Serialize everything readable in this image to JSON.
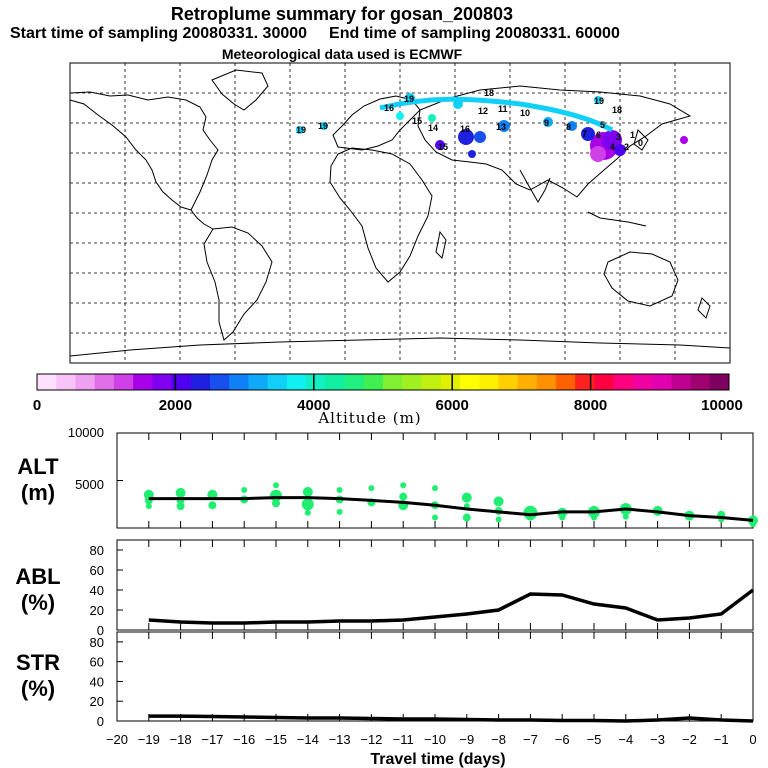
{
  "header": {
    "title": "Retroplume summary for gosan_200803",
    "start_label": "Start time of sampling 20080331. 30000",
    "end_label": "End time of sampling 20080331. 60000",
    "met_label": "Meteorological data used is ECMWF"
  },
  "map": {
    "plume_labels": [
      "19",
      "19",
      "19",
      "18",
      "16",
      "15",
      "14",
      "13",
      "12",
      "11",
      "10",
      "9",
      "8",
      "7",
      "6",
      "5",
      "4",
      "3",
      "2",
      "1",
      "0",
      "19",
      "18",
      "16",
      "15"
    ]
  },
  "colorbar": {
    "ticks": [
      0,
      2000,
      4000,
      6000,
      8000,
      10000
    ],
    "tick_labels": [
      "0",
      "2000",
      "4000",
      "6000",
      "8000",
      "10000"
    ],
    "label": "Altitude (m)",
    "colors": [
      "#fde0fd",
      "#f8c4f8",
      "#f0a0f0",
      "#e070e8",
      "#d040e8",
      "#a800e8",
      "#8000f0",
      "#5000f0",
      "#2020e0",
      "#1850f0",
      "#1080f8",
      "#10a8f8",
      "#10d0f8",
      "#10f0f0",
      "#10f0c0",
      "#10f0a0",
      "#20f080",
      "#40f050",
      "#80f030",
      "#a0f020",
      "#c0f010",
      "#e0f000",
      "#ffff00",
      "#fff000",
      "#ffd000",
      "#ffb000",
      "#ff9000",
      "#ff6000",
      "#ff2020",
      "#ff0040",
      "#ff0080",
      "#f000a0",
      "#e000b0",
      "#c00090",
      "#a00070",
      "#800060"
    ]
  },
  "chart_data": [
    {
      "type": "scatter",
      "name": "altitude",
      "ylabel": "ALT (m)",
      "ylabel_top": "ALT",
      "ylabel_bottom": "(m)",
      "ylim": [
        0,
        10000
      ],
      "yticks": [
        5000,
        10000
      ],
      "ytick_labels": [
        "5000",
        "10000"
      ],
      "xlim": [
        -20,
        0
      ],
      "line_x": [
        -19,
        -18,
        -17,
        -16,
        -15,
        -14,
        -13,
        -12,
        -11,
        -10,
        -9,
        -8,
        -7,
        -6,
        -5,
        -4,
        -3,
        -2,
        -1,
        0
      ],
      "line_y": [
        3100,
        3100,
        3100,
        3100,
        3200,
        3200,
        3100,
        2900,
        2700,
        2400,
        2000,
        1700,
        1400,
        1700,
        1700,
        2000,
        1700,
        1300,
        1100,
        800
      ],
      "points": [
        [
          -19,
          3500,
          5
        ],
        [
          -19,
          2900,
          4
        ],
        [
          -19,
          2300,
          3
        ],
        [
          -18,
          3700,
          5
        ],
        [
          -18,
          2900,
          4
        ],
        [
          -18,
          2300,
          4
        ],
        [
          -17,
          3500,
          5
        ],
        [
          -17,
          2400,
          4
        ],
        [
          -16,
          4000,
          3
        ],
        [
          -16,
          3000,
          4
        ],
        [
          -15,
          4500,
          3
        ],
        [
          -15,
          3400,
          6
        ],
        [
          -15,
          2600,
          4
        ],
        [
          -14,
          3800,
          5
        ],
        [
          -14,
          2500,
          6
        ],
        [
          -14,
          1600,
          3
        ],
        [
          -13,
          4000,
          3
        ],
        [
          -13,
          3000,
          4
        ],
        [
          -13,
          1700,
          3
        ],
        [
          -12,
          4200,
          3
        ],
        [
          -12,
          2700,
          4
        ],
        [
          -11,
          4500,
          3
        ],
        [
          -11,
          3300,
          4
        ],
        [
          -11,
          2400,
          5
        ],
        [
          -10,
          4200,
          3
        ],
        [
          -10,
          2400,
          4
        ],
        [
          -10,
          1100,
          3
        ],
        [
          -9,
          3200,
          5
        ],
        [
          -9,
          2300,
          3
        ],
        [
          -9,
          1100,
          4
        ],
        [
          -8,
          2800,
          5
        ],
        [
          -8,
          1800,
          4
        ],
        [
          -8,
          900,
          3
        ],
        [
          -7,
          1600,
          7
        ],
        [
          -7,
          1300,
          5
        ],
        [
          -6,
          1600,
          5
        ],
        [
          -6,
          1100,
          3
        ],
        [
          -5,
          1700,
          6
        ],
        [
          -5,
          1100,
          3
        ],
        [
          -4,
          2000,
          6
        ],
        [
          -4,
          1200,
          3
        ],
        [
          -3,
          1800,
          5
        ],
        [
          -2,
          1300,
          5
        ],
        [
          -1,
          1400,
          4
        ],
        [
          -1,
          900,
          3
        ],
        [
          0,
          800,
          5
        ],
        [
          0,
          400,
          3
        ]
      ]
    },
    {
      "type": "line",
      "name": "ABL",
      "ylabel_top": "ABL",
      "ylabel_bottom": "(%)",
      "ylim": [
        0,
        90
      ],
      "yticks": [
        0,
        20,
        40,
        60,
        80
      ],
      "ytick_labels": [
        "0",
        "20",
        "40",
        "60",
        "80"
      ],
      "x": [
        -19,
        -18,
        -17,
        -16,
        -15,
        -14,
        -13,
        -12,
        -11,
        -10,
        -9,
        -8,
        -7,
        -6,
        -5,
        -4,
        -3,
        -2,
        -1,
        0
      ],
      "y": [
        10,
        8,
        7,
        7,
        8,
        8,
        9,
        9,
        10,
        13,
        16,
        20,
        36,
        35,
        26,
        22,
        10,
        12,
        16,
        40
      ]
    },
    {
      "type": "line",
      "name": "STR",
      "ylabel_top": "STR",
      "ylabel_bottom": "(%)",
      "ylim": [
        0,
        90
      ],
      "yticks": [
        0,
        20,
        40,
        60,
        80
      ],
      "ytick_labels": [
        "0",
        "20",
        "40",
        "60",
        "80"
      ],
      "x": [
        -19,
        -18,
        -17,
        -16,
        -15,
        -14,
        -13,
        -12,
        -11,
        -10,
        -9,
        -8,
        -7,
        -6,
        -5,
        -4,
        -3,
        -2,
        -1,
        0
      ],
      "y": [
        5,
        5,
        4.5,
        4,
        3.5,
        3,
        3,
        2.5,
        2,
        2,
        1.5,
        1,
        1,
        0.5,
        0.5,
        0,
        1,
        3,
        1,
        0
      ]
    }
  ],
  "xaxis": {
    "ticks": [
      -20,
      -19,
      -18,
      -17,
      -16,
      -15,
      -14,
      -13,
      -12,
      -11,
      -10,
      -9,
      -8,
      -7,
      -6,
      -5,
      -4,
      -3,
      -2,
      -1,
      0
    ],
    "tick_labels": [
      "−20",
      "−19",
      "−18",
      "−17",
      "−16",
      "−15",
      "−14",
      "−13",
      "−12",
      "−11",
      "−10",
      "−9",
      "−8",
      "−7",
      "−6",
      "−5",
      "−4",
      "−3",
      "−2",
      "−1",
      "0"
    ],
    "label": "Travel time (days)"
  },
  "colors": {
    "dot": "#20ee70",
    "line": "#000000"
  }
}
